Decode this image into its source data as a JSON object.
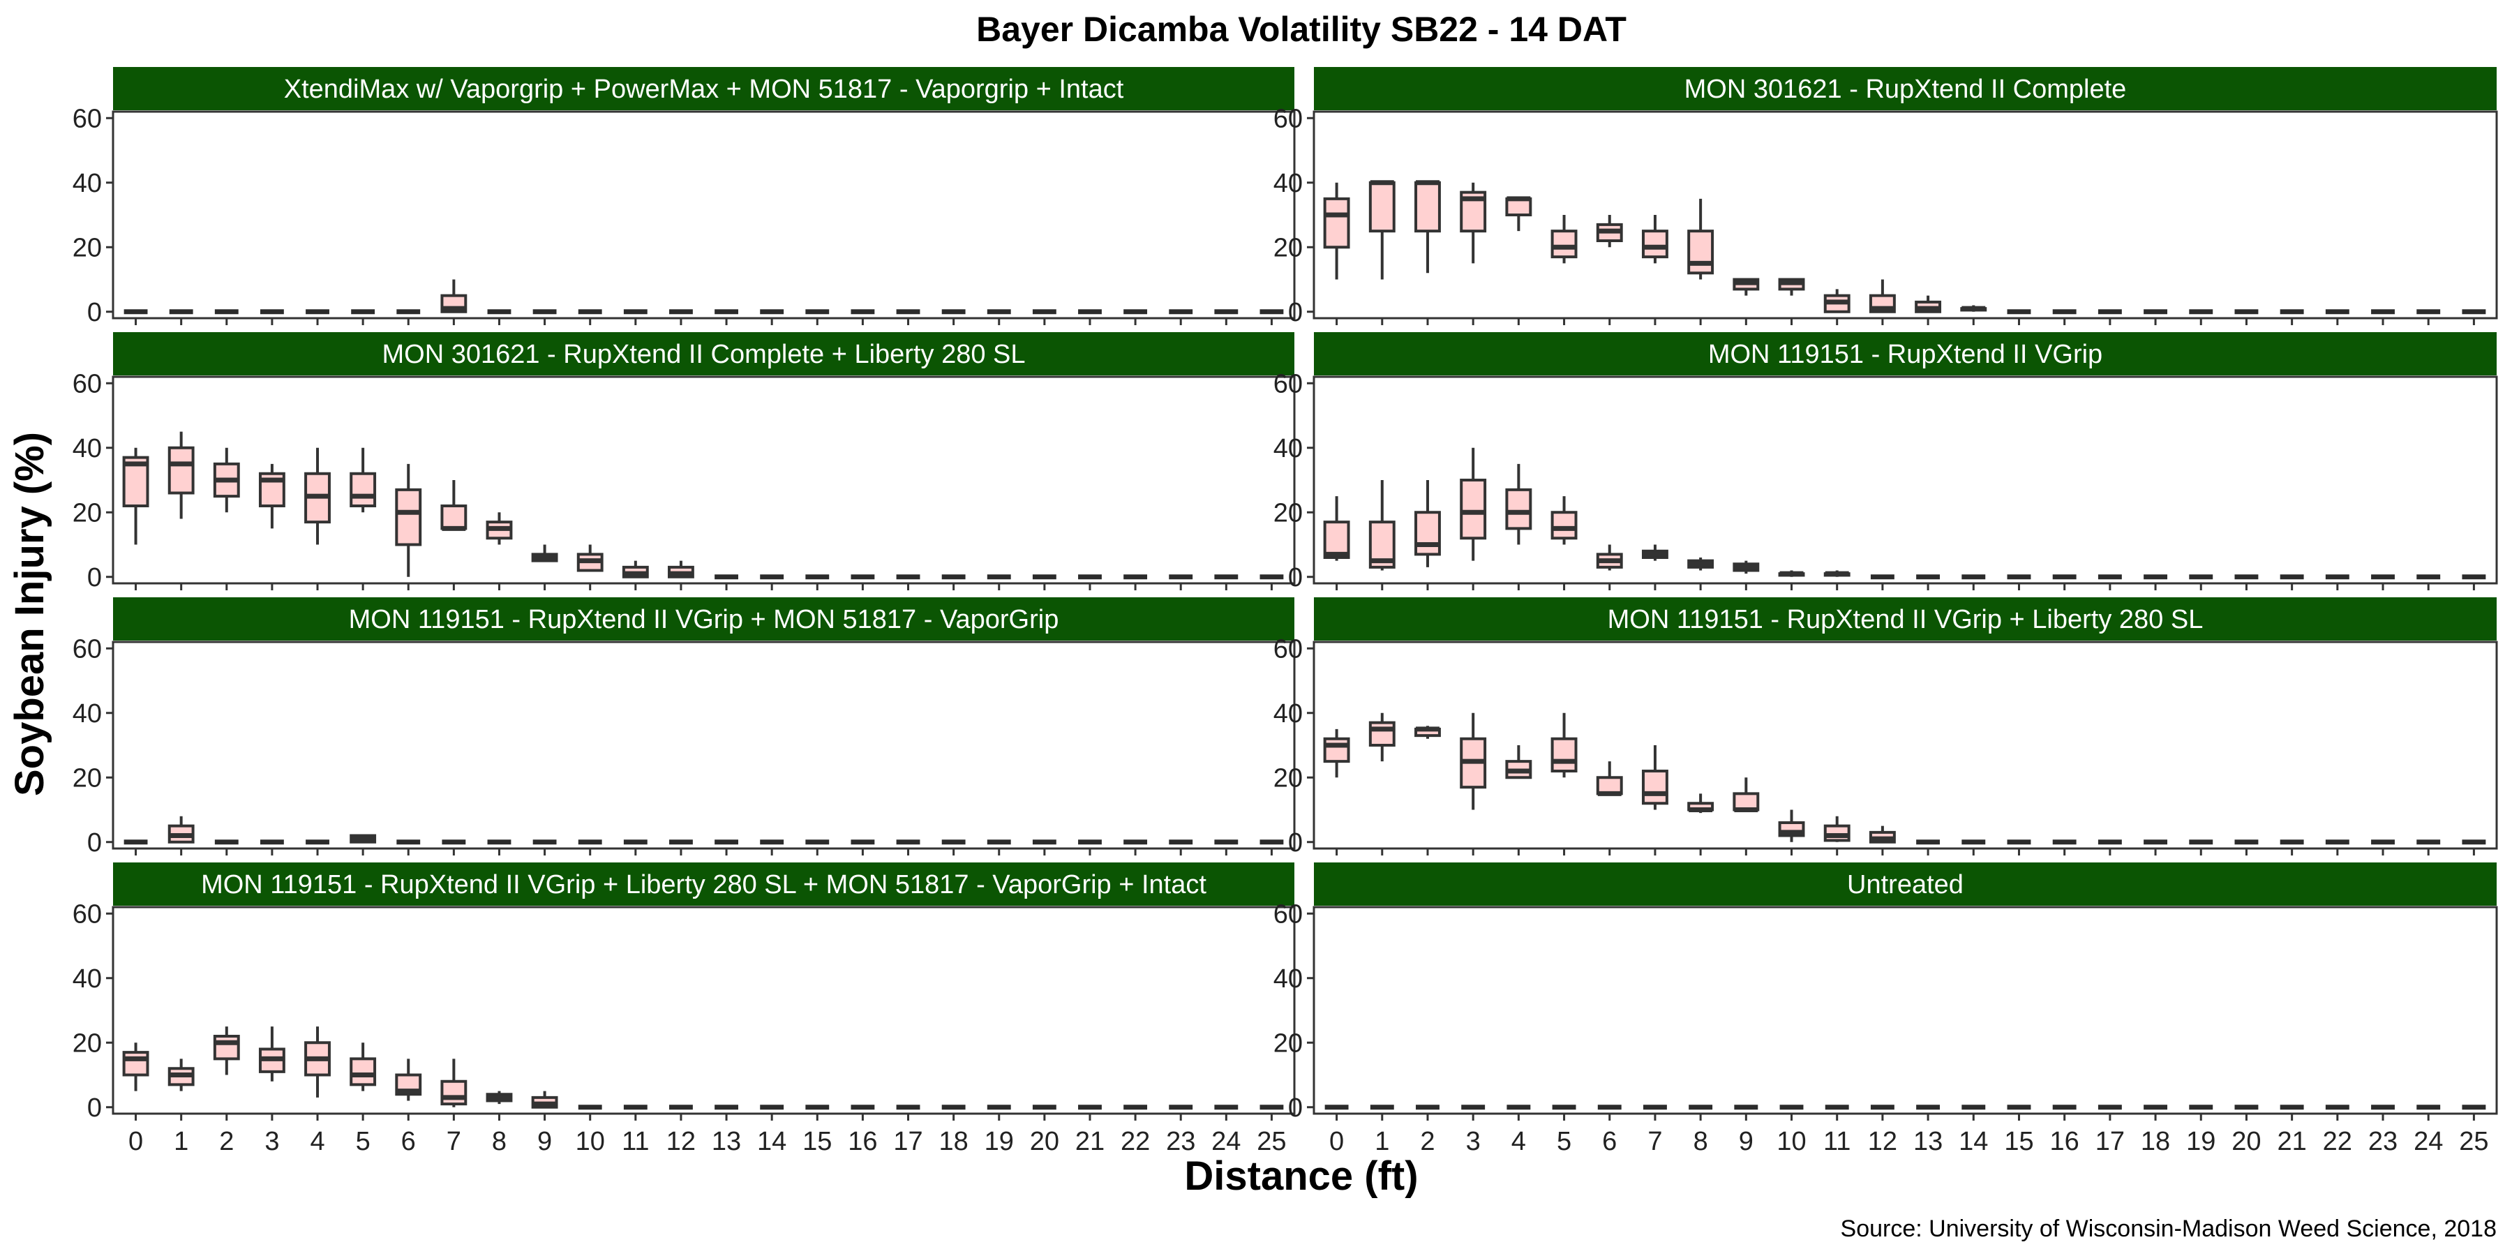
{
  "chart_data": {
    "type": "box",
    "title": "Bayer Dicamba Volatility SB22 - 14 DAT",
    "xlabel": "Distance (ft)",
    "ylabel": "Soybean Injury (%)",
    "source": "Source: University of Wisconsin-Madison Weed Science, 2018",
    "x_categories": [
      "0",
      "1",
      "2",
      "3",
      "4",
      "5",
      "6",
      "7",
      "8",
      "9",
      "10",
      "11",
      "12",
      "13",
      "14",
      "15",
      "16",
      "17",
      "18",
      "19",
      "20",
      "21",
      "22",
      "23",
      "24",
      "25"
    ],
    "ylim": [
      -2,
      62
    ],
    "yticks": [
      0,
      20,
      40,
      60
    ],
    "box_fill": "#FFD1D1",
    "strip_fill": "#0B5503",
    "strip_text_color": "#FFFFFF",
    "panels": [
      {
        "title": "XtendiMax w/ Vaporgrip + PowerMax + MON 51817 - Vaporgrip + Intact",
        "boxes": [
          {
            "x": 7,
            "min": 0,
            "q1": 0,
            "median": 1,
            "q3": 5,
            "max": 10
          }
        ]
      },
      {
        "title": "MON 301621 - RupXtend II Complete",
        "boxes": [
          {
            "x": 0,
            "min": 10,
            "q1": 20,
            "median": 30,
            "q3": 35,
            "max": 40
          },
          {
            "x": 1,
            "min": 10,
            "q1": 25,
            "median": 40,
            "q3": 40,
            "max": 40
          },
          {
            "x": 2,
            "min": 12,
            "q1": 25,
            "median": 40,
            "q3": 40,
            "max": 40
          },
          {
            "x": 3,
            "min": 15,
            "q1": 25,
            "median": 35,
            "q3": 37,
            "max": 40
          },
          {
            "x": 4,
            "min": 25,
            "q1": 30,
            "median": 35,
            "q3": 35,
            "max": 35
          },
          {
            "x": 5,
            "min": 15,
            "q1": 17,
            "median": 20,
            "q3": 25,
            "max": 30
          },
          {
            "x": 6,
            "min": 20,
            "q1": 22,
            "median": 25,
            "q3": 27,
            "max": 30
          },
          {
            "x": 7,
            "min": 15,
            "q1": 17,
            "median": 20,
            "q3": 25,
            "max": 30
          },
          {
            "x": 8,
            "min": 10,
            "q1": 12,
            "median": 15,
            "q3": 25,
            "max": 35
          },
          {
            "x": 9,
            "min": 5,
            "q1": 7,
            "median": 9,
            "q3": 10,
            "max": 10
          },
          {
            "x": 10,
            "min": 5,
            "q1": 7,
            "median": 9,
            "q3": 10,
            "max": 10
          },
          {
            "x": 11,
            "min": 0,
            "q1": 0,
            "median": 3,
            "q3": 5,
            "max": 7
          },
          {
            "x": 12,
            "min": 0,
            "q1": 0,
            "median": 1,
            "q3": 5,
            "max": 10
          },
          {
            "x": 13,
            "min": 0,
            "q1": 0,
            "median": 1,
            "q3": 3,
            "max": 5
          },
          {
            "x": 14,
            "min": 0,
            "q1": 0.5,
            "median": 1,
            "q3": 1,
            "max": 2
          }
        ]
      },
      {
        "title": "MON 301621 - RupXtend II Complete + Liberty 280 SL",
        "boxes": [
          {
            "x": 0,
            "min": 10,
            "q1": 22,
            "median": 35,
            "q3": 37,
            "max": 40
          },
          {
            "x": 1,
            "min": 18,
            "q1": 26,
            "median": 35,
            "q3": 40,
            "max": 45
          },
          {
            "x": 2,
            "min": 20,
            "q1": 25,
            "median": 30,
            "q3": 35,
            "max": 40
          },
          {
            "x": 3,
            "min": 15,
            "q1": 22,
            "median": 30,
            "q3": 32,
            "max": 35
          },
          {
            "x": 4,
            "min": 10,
            "q1": 17,
            "median": 25,
            "q3": 32,
            "max": 40
          },
          {
            "x": 5,
            "min": 20,
            "q1": 22,
            "median": 25,
            "q3": 32,
            "max": 40
          },
          {
            "x": 6,
            "min": 0,
            "q1": 10,
            "median": 20,
            "q3": 27,
            "max": 35
          },
          {
            "x": 7,
            "min": 15,
            "q1": 15,
            "median": 15,
            "q3": 22,
            "max": 30
          },
          {
            "x": 8,
            "min": 10,
            "q1": 12,
            "median": 15,
            "q3": 17,
            "max": 20
          },
          {
            "x": 9,
            "min": 5,
            "q1": 5,
            "median": 6,
            "q3": 7,
            "max": 10
          },
          {
            "x": 10,
            "min": 2,
            "q1": 2,
            "median": 5,
            "q3": 7,
            "max": 10
          },
          {
            "x": 11,
            "min": 0,
            "q1": 0,
            "median": 1,
            "q3": 3,
            "max": 5
          },
          {
            "x": 12,
            "min": 0,
            "q1": 0,
            "median": 1,
            "q3": 3,
            "max": 5
          }
        ]
      },
      {
        "title": "MON 119151 - RupXtend II VGrip",
        "boxes": [
          {
            "x": 0,
            "min": 5,
            "q1": 6,
            "median": 7,
            "q3": 17,
            "max": 25
          },
          {
            "x": 1,
            "min": 2,
            "q1": 3,
            "median": 5,
            "q3": 17,
            "max": 30
          },
          {
            "x": 2,
            "min": 3,
            "q1": 7,
            "median": 10,
            "q3": 20,
            "max": 30
          },
          {
            "x": 3,
            "min": 5,
            "q1": 12,
            "median": 20,
            "q3": 30,
            "max": 40
          },
          {
            "x": 4,
            "min": 10,
            "q1": 15,
            "median": 20,
            "q3": 27,
            "max": 35
          },
          {
            "x": 5,
            "min": 10,
            "q1": 12,
            "median": 15,
            "q3": 20,
            "max": 25
          },
          {
            "x": 6,
            "min": 2,
            "q1": 3,
            "median": 5,
            "q3": 7,
            "max": 10
          },
          {
            "x": 7,
            "min": 5,
            "q1": 6,
            "median": 7,
            "q3": 8,
            "max": 10
          },
          {
            "x": 8,
            "min": 2,
            "q1": 3,
            "median": 4,
            "q3": 5,
            "max": 6
          },
          {
            "x": 9,
            "min": 1,
            "q1": 2,
            "median": 3,
            "q3": 4,
            "max": 5
          },
          {
            "x": 10,
            "min": 0,
            "q1": 0.5,
            "median": 1,
            "q3": 1,
            "max": 2
          },
          {
            "x": 11,
            "min": 0,
            "q1": 0.5,
            "median": 1,
            "q3": 1,
            "max": 2
          }
        ]
      },
      {
        "title": "MON 119151 - RupXtend II VGrip + MON 51817 - VaporGrip",
        "boxes": [
          {
            "x": 1,
            "min": 0,
            "q1": 0,
            "median": 2,
            "q3": 5,
            "max": 8
          },
          {
            "x": 5,
            "min": 0,
            "q1": 0,
            "median": 1,
            "q3": 2,
            "max": 2
          }
        ]
      },
      {
        "title": "MON 119151 - RupXtend II VGrip + Liberty 280 SL",
        "boxes": [
          {
            "x": 0,
            "min": 20,
            "q1": 25,
            "median": 30,
            "q3": 32,
            "max": 35
          },
          {
            "x": 1,
            "min": 25,
            "q1": 30,
            "median": 35,
            "q3": 37,
            "max": 40
          },
          {
            "x": 2,
            "min": 32,
            "q1": 33,
            "median": 35,
            "q3": 35,
            "max": 36
          },
          {
            "x": 3,
            "min": 10,
            "q1": 17,
            "median": 25,
            "q3": 32,
            "max": 40
          },
          {
            "x": 4,
            "min": 20,
            "q1": 20,
            "median": 22,
            "q3": 25,
            "max": 30
          },
          {
            "x": 5,
            "min": 20,
            "q1": 22,
            "median": 25,
            "q3": 32,
            "max": 40
          },
          {
            "x": 6,
            "min": 15,
            "q1": 15,
            "median": 15,
            "q3": 20,
            "max": 25
          },
          {
            "x": 7,
            "min": 10,
            "q1": 12,
            "median": 15,
            "q3": 22,
            "max": 30
          },
          {
            "x": 8,
            "min": 9,
            "q1": 10,
            "median": 10,
            "q3": 12,
            "max": 15
          },
          {
            "x": 9,
            "min": 10,
            "q1": 10,
            "median": 10,
            "q3": 15,
            "max": 20
          },
          {
            "x": 10,
            "min": 0,
            "q1": 2,
            "median": 3,
            "q3": 6,
            "max": 10
          },
          {
            "x": 11,
            "min": 0,
            "q1": 0.5,
            "median": 2,
            "q3": 5,
            "max": 8
          },
          {
            "x": 12,
            "min": 0,
            "q1": 0,
            "median": 1,
            "q3": 3,
            "max": 5
          }
        ]
      },
      {
        "title": "MON 119151 - RupXtend II VGrip + Liberty 280 SL + MON 51817 - VaporGrip + Intact",
        "boxes": [
          {
            "x": 0,
            "min": 5,
            "q1": 10,
            "median": 15,
            "q3": 17,
            "max": 20
          },
          {
            "x": 1,
            "min": 5,
            "q1": 7,
            "median": 10,
            "q3": 12,
            "max": 15
          },
          {
            "x": 2,
            "min": 10,
            "q1": 15,
            "median": 20,
            "q3": 22,
            "max": 25
          },
          {
            "x": 3,
            "min": 8,
            "q1": 11,
            "median": 15,
            "q3": 18,
            "max": 25
          },
          {
            "x": 4,
            "min": 3,
            "q1": 10,
            "median": 15,
            "q3": 20,
            "max": 25
          },
          {
            "x": 5,
            "min": 5,
            "q1": 7,
            "median": 10,
            "q3": 15,
            "max": 20
          },
          {
            "x": 6,
            "min": 2,
            "q1": 4,
            "median": 5,
            "q3": 10,
            "max": 15
          },
          {
            "x": 7,
            "min": 0,
            "q1": 1,
            "median": 3,
            "q3": 8,
            "max": 15
          },
          {
            "x": 8,
            "min": 1,
            "q1": 2,
            "median": 3,
            "q3": 4,
            "max": 5
          },
          {
            "x": 9,
            "min": 0,
            "q1": 0,
            "median": 1,
            "q3": 3,
            "max": 5
          }
        ]
      },
      {
        "title": "Untreated",
        "boxes": []
      }
    ]
  }
}
